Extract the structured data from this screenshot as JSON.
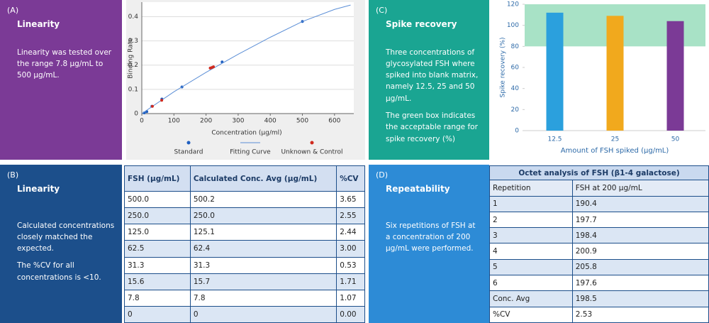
{
  "panels": {
    "a": {
      "label": "(A)",
      "title": "Linearity",
      "text": [
        "Linearity was tested over the range 7.8 µg/mL to 500 µg/mL."
      ]
    },
    "b": {
      "label": "(B)",
      "title": "Linearity",
      "text": [
        "Calculated concentrations closely matched the expected.",
        "The %CV for all concentrations is <10."
      ]
    },
    "c": {
      "label": "(C)",
      "title": "Spike recovery",
      "text": [
        "Three concentrations of glycosylated FSH where spiked into blank matrix, namely 12.5, 25 and 50 µg/mL.",
        "The green box indicates the acceptable range for spike recovery (%)"
      ]
    },
    "d": {
      "label": "(D)",
      "title": "Repeatability",
      "text": [
        "Six repetitions of FSH at a concentration of 200 µg/mL were performed."
      ]
    }
  },
  "table_b": {
    "header": [
      "FSH (µg/mL)",
      "Calculated Conc. Avg (µg/mL)",
      "%CV"
    ],
    "rows": [
      [
        "500.0",
        "500.2",
        "3.65"
      ],
      [
        "250.0",
        "250.0",
        "2.55"
      ],
      [
        "125.0",
        "125.1",
        "2.44"
      ],
      [
        "62.5",
        "62.4",
        "3.00"
      ],
      [
        "31.3",
        "31.3",
        "0.53"
      ],
      [
        "15.6",
        "15.7",
        "1.71"
      ],
      [
        "7.8",
        "7.8",
        "1.07"
      ],
      [
        "0",
        "0",
        "0.00"
      ]
    ]
  },
  "table_d": {
    "title": "Octet analysis of FSH (β1-4 galactose)",
    "header": [
      "Repetition",
      "FSH at 200 µg/mL"
    ],
    "rows": [
      [
        "1",
        "190.4"
      ],
      [
        "2",
        "197.7"
      ],
      [
        "3",
        "198.4"
      ],
      [
        "4",
        "200.9"
      ],
      [
        "5",
        "205.8"
      ],
      [
        "6",
        "197.6"
      ],
      [
        "Conc. Avg",
        "198.5"
      ],
      [
        "%CV",
        "2.53"
      ]
    ]
  },
  "chart_data": [
    {
      "type": "scatter",
      "x_label": "Concentration (µg/ml)",
      "y_label": "Binding Rate",
      "xlim": [
        0,
        660
      ],
      "ylim": [
        0,
        0.46
      ],
      "xticks": [
        0,
        100,
        200,
        300,
        400,
        500,
        600
      ],
      "yticks": [
        0,
        0.1,
        0.2,
        0.3,
        0.4
      ],
      "grid": true,
      "series": [
        {
          "name": "Standard",
          "color": "#1f5fc0",
          "x": [
            7.8,
            15.6,
            31.3,
            62.5,
            125,
            250,
            500
          ],
          "y": [
            0.003,
            0.008,
            0.03,
            0.06,
            0.11,
            0.213,
            0.38
          ]
        },
        {
          "name": "Fitting Curve",
          "color": "#5b8ed6",
          "line": true,
          "x": [
            0,
            100,
            200,
            300,
            400,
            500,
            600,
            650
          ],
          "y": [
            0,
            0.09,
            0.17,
            0.245,
            0.315,
            0.38,
            0.43,
            0.448
          ]
        },
        {
          "name": "Unknown & Control",
          "color": "#d02a1e",
          "x": [
            33,
            62,
            213,
            218,
            223
          ],
          "y": [
            0.03,
            0.055,
            0.188,
            0.19,
            0.193
          ]
        }
      ]
    },
    {
      "type": "bar",
      "x_label": "Amount of FSH spiked (µg/mL)",
      "y_label": "Spike recovery (%)",
      "categories": [
        "12.5",
        "25",
        "50"
      ],
      "ylim": [
        0,
        120
      ],
      "yticks": [
        0,
        20,
        40,
        60,
        80,
        100,
        120
      ],
      "target_range": [
        80,
        120
      ],
      "target_color": "#a8e2c6",
      "colors": [
        "#2ba0dd",
        "#f1a91d",
        "#7b3a96"
      ],
      "values": [
        112,
        109,
        104
      ]
    }
  ]
}
